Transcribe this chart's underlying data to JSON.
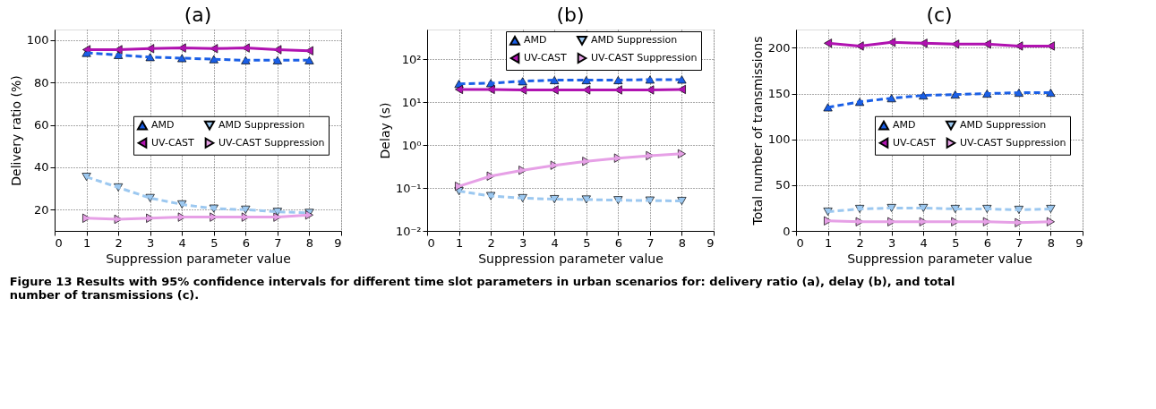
{
  "chart_data": [
    {
      "type": "line",
      "title": "(a)",
      "xlabel": "Suppression parameter value",
      "ylabel": "Delivery ratio (%)",
      "x": [
        1,
        2,
        3,
        4,
        5,
        6,
        7,
        8
      ],
      "xlim": [
        0,
        9
      ],
      "xticks": [
        0,
        1,
        2,
        3,
        4,
        5,
        6,
        7,
        8,
        9
      ],
      "ylim": [
        10,
        105
      ],
      "yticks": [
        20,
        40,
        60,
        80,
        100
      ],
      "grid": true,
      "legend": "center right",
      "series": [
        {
          "name": "AMD",
          "color": "#1a5fe6",
          "marker": "triangle-up",
          "line_style": "dashed",
          "values": [
            94,
            93,
            92,
            91.5,
            91,
            90.5,
            90.5,
            90.5
          ]
        },
        {
          "name": "UV-CAST",
          "color": "#b012b0",
          "marker": "triangle-left",
          "line_style": "solid",
          "values": [
            95.5,
            95.5,
            96,
            96.3,
            96,
            96.3,
            95.5,
            95
          ]
        },
        {
          "name": "AMD Suppression",
          "color": "#9cc8f0",
          "marker": "triangle-down",
          "line_style": "dashed",
          "values": [
            35.5,
            30.5,
            25.5,
            22.5,
            20.5,
            20,
            19,
            18.5
          ]
        },
        {
          "name": "UV-CAST Suppression",
          "color": "#e6a0e6",
          "marker": "triangle-right",
          "line_style": "solid",
          "values": [
            16,
            15.5,
            16,
            16.5,
            16.5,
            16.5,
            16.5,
            17.5
          ]
        }
      ],
      "annotations": [
        "Figure 13 Results with 95% confidence intervals for different time slot parameters in urban scenarios for: delivery ratio (a), delay (b), and total number of transmissions (c)."
      ]
    },
    {
      "type": "line",
      "title": "(b)",
      "xlabel": "Suppression parameter value",
      "ylabel": "Delay (s)",
      "x": [
        1,
        2,
        3,
        4,
        5,
        6,
        7,
        8
      ],
      "xlim": [
        0,
        9
      ],
      "xticks": [
        0,
        1,
        2,
        3,
        4,
        5,
        6,
        7,
        8,
        9
      ],
      "log": "y",
      "ylim": [
        0.01,
        500
      ],
      "yticks": [
        {
          "value": 0.01,
          "label": "10⁻²"
        },
        {
          "value": 0.1,
          "label": "10⁻¹"
        },
        {
          "value": 1,
          "label": "10⁰"
        },
        {
          "value": 10,
          "label": "10¹"
        },
        {
          "value": 100,
          "label": "10²"
        }
      ],
      "grid": true,
      "legend": "top right",
      "series": [
        {
          "name": "AMD",
          "color": "#1a5fe6",
          "marker": "triangle-up",
          "line_style": "dashed",
          "values": [
            27,
            28,
            31,
            33,
            33,
            33,
            34,
            34
          ]
        },
        {
          "name": "UV-CAST",
          "color": "#b012b0",
          "marker": "triangle-left",
          "line_style": "solid",
          "values": [
            20,
            20,
            19.5,
            19.5,
            19.5,
            19.5,
            19.5,
            20
          ]
        },
        {
          "name": "AMD Suppression",
          "color": "#9cc8f0",
          "marker": "triangle-down",
          "line_style": "dashed",
          "values": [
            0.085,
            0.065,
            0.058,
            0.055,
            0.054,
            0.052,
            0.051,
            0.05
          ]
        },
        {
          "name": "UV-CAST Suppression",
          "color": "#e6a0e6",
          "marker": "triangle-right",
          "line_style": "solid",
          "values": [
            0.11,
            0.19,
            0.26,
            0.34,
            0.42,
            0.5,
            0.57,
            0.63
          ]
        }
      ]
    },
    {
      "type": "line",
      "title": "(c)",
      "xlabel": "Suppression parameter value",
      "ylabel": "Total number of transmissions",
      "x": [
        1,
        2,
        3,
        4,
        5,
        6,
        7,
        8
      ],
      "xlim": [
        0,
        9
      ],
      "xticks": [
        0,
        1,
        2,
        3,
        4,
        5,
        6,
        7,
        8,
        9
      ],
      "ylim": [
        0,
        220
      ],
      "yticks": [
        0,
        50,
        100,
        150,
        200
      ],
      "grid": true,
      "legend": "center right",
      "series": [
        {
          "name": "AMD",
          "color": "#1a5fe6",
          "marker": "triangle-up",
          "line_style": "dashed",
          "values": [
            135,
            141,
            145,
            148,
            149,
            150,
            151,
            151
          ]
        },
        {
          "name": "UV-CAST",
          "color": "#b012b0",
          "marker": "triangle-left",
          "line_style": "solid",
          "values": [
            205,
            202,
            206,
            205,
            204,
            204,
            202,
            202
          ]
        },
        {
          "name": "AMD Suppression",
          "color": "#9cc8f0",
          "marker": "triangle-down",
          "line_style": "dashed",
          "values": [
            21,
            24,
            25,
            25,
            24,
            24,
            23,
            24
          ]
        },
        {
          "name": "UV-CAST Suppression",
          "color": "#e6a0e6",
          "marker": "triangle-right",
          "line_style": "solid",
          "values": [
            11,
            10,
            10,
            10,
            10,
            10,
            9,
            10
          ]
        }
      ]
    }
  ]
}
